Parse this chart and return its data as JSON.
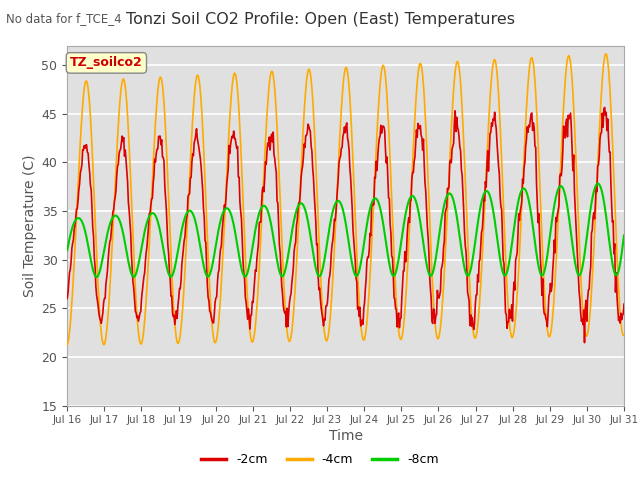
{
  "title": "Tonzi Soil CO2 Profile: Open (East) Temperatures",
  "subtitle": "No data for f_TCE_4",
  "xlabel": "Time",
  "ylabel": "Soil Temperature (C)",
  "ylim": [
    15,
    52
  ],
  "yticks": [
    15,
    20,
    25,
    30,
    35,
    40,
    45,
    50
  ],
  "legend_label": "TZ_soilco2",
  "series_labels": [
    "-2cm",
    "-4cm",
    "-8cm"
  ],
  "series_colors": [
    "#dd0000",
    "#ffaa00",
    "#00cc00"
  ],
  "x_tick_labels": [
    "Jul 16",
    "Jul 17",
    "Jul 18",
    "Jul 19",
    "Jul 20",
    "Jul 21",
    "Jul 22",
    "Jul 23",
    "Jul 24",
    "Jul 25",
    "Jul 26",
    "Jul 27",
    "Jul 28",
    "Jul 29",
    "Jul 30",
    "Jul 31"
  ],
  "plot_bg_color": "#e0e0e0",
  "grid_color": "#ffffff",
  "n_days": 15,
  "samples_per_day": 48
}
